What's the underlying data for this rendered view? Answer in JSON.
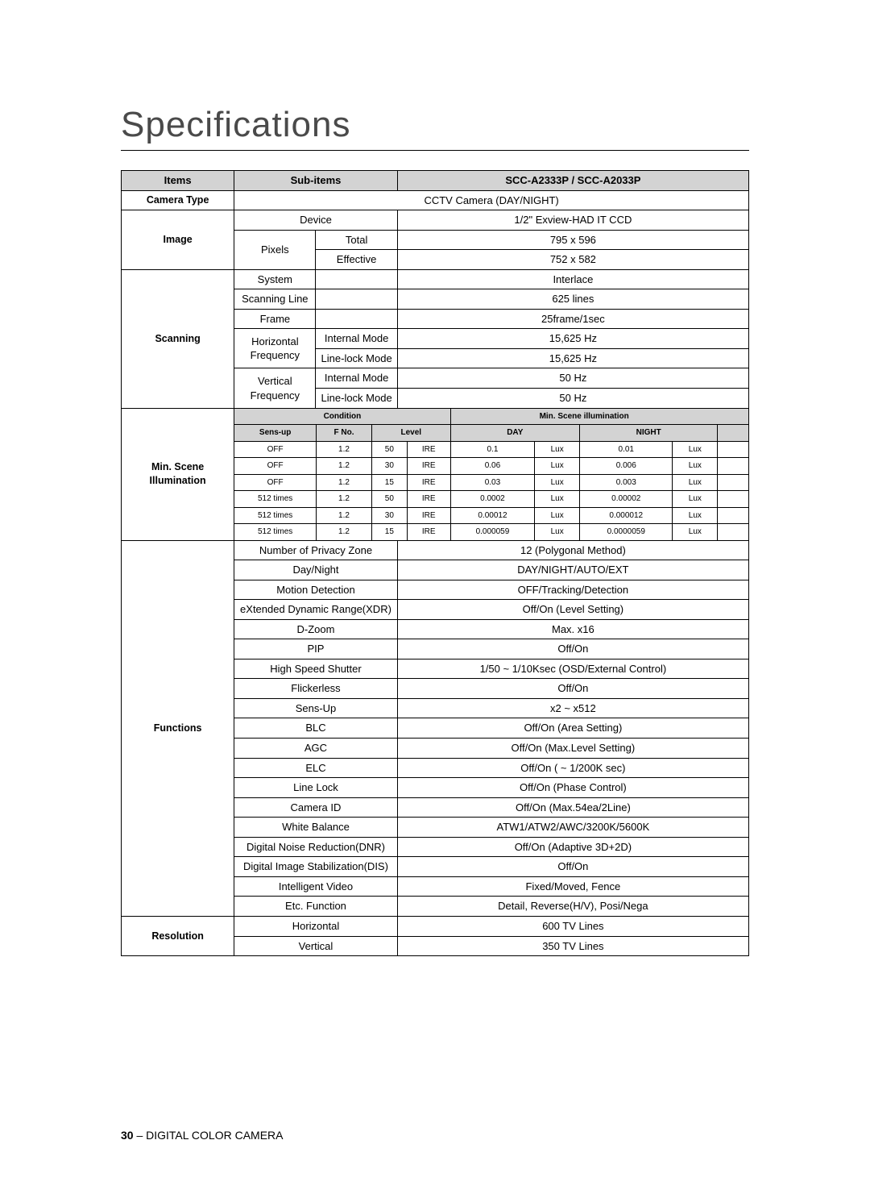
{
  "page_title": "Specifications",
  "footer_page_number": "30",
  "footer_text": " – DIGITAL COLOR CAMERA",
  "header": {
    "items": "Items",
    "sub_items": "Sub-items",
    "model": "SCC-A2333P / SCC-A2033P"
  },
  "camera_type": {
    "label": "Camera Type",
    "value": "CCTV Camera (DAY/NIGHT)"
  },
  "image": {
    "label": "Image",
    "device_label": "Device",
    "device_value": "1/2\" Exview-HAD IT CCD",
    "pixels_label": "Pixels",
    "total_label": "Total",
    "total_value": "795 x 596",
    "effective_label": "Effective",
    "effective_value": "752 x 582"
  },
  "scanning": {
    "label": "Scanning",
    "system_label": "System",
    "system_value": "Interlace",
    "line_label": "Scanning Line",
    "line_value": "625 lines",
    "frame_label": "Frame",
    "frame_value": "25frame/1sec",
    "hfreq_label": "Horizontal Frequency",
    "hfreq_int_label": "Internal Mode",
    "hfreq_int_value": "15,625 Hz",
    "hfreq_ll_label": "Line-lock Mode",
    "hfreq_ll_value": "15,625 Hz",
    "vfreq_label": "Vertical Frequency",
    "vfreq_int_label": "Internal Mode",
    "vfreq_int_value": "50 Hz",
    "vfreq_ll_label": "Line-lock Mode",
    "vfreq_ll_value": "50 Hz"
  },
  "min_scene": {
    "label": "Min. Scene Illumination",
    "cond_header": "Condition",
    "msi_header": "Min. Scene illumination",
    "sensup": "Sens-up",
    "fno": "F No.",
    "level": "Level",
    "day": "DAY",
    "night": "NIGHT",
    "rows": [
      {
        "s": "OFF",
        "f": "1.2",
        "lv": "50",
        "ire": "IRE",
        "d": "0.1",
        "du": "Lux",
        "n": "0.01",
        "nu": "Lux"
      },
      {
        "s": "OFF",
        "f": "1.2",
        "lv": "30",
        "ire": "IRE",
        "d": "0.06",
        "du": "Lux",
        "n": "0.006",
        "nu": "Lux"
      },
      {
        "s": "OFF",
        "f": "1.2",
        "lv": "15",
        "ire": "IRE",
        "d": "0.03",
        "du": "Lux",
        "n": "0.003",
        "nu": "Lux"
      },
      {
        "s": "512 times",
        "f": "1.2",
        "lv": "50",
        "ire": "IRE",
        "d": "0.0002",
        "du": "Lux",
        "n": "0.00002",
        "nu": "Lux"
      },
      {
        "s": "512 times",
        "f": "1.2",
        "lv": "30",
        "ire": "IRE",
        "d": "0.00012",
        "du": "Lux",
        "n": "0.000012",
        "nu": "Lux"
      },
      {
        "s": "512 times",
        "f": "1.2",
        "lv": "15",
        "ire": "IRE",
        "d": "0.000059",
        "du": "Lux",
        "n": "0.0000059",
        "nu": "Lux"
      }
    ]
  },
  "functions": {
    "label": "Functions",
    "rows": [
      {
        "k": "Number of Privacy Zone",
        "v": "12 (Polygonal Method)"
      },
      {
        "k": "Day/Night",
        "v": "DAY/NIGHT/AUTO/EXT"
      },
      {
        "k": "Motion Detection",
        "v": "OFF/Tracking/Detection"
      },
      {
        "k": "eXtended Dynamic Range(XDR)",
        "v": "Off/On (Level Setting)"
      },
      {
        "k": "D-Zoom",
        "v": "Max. x16"
      },
      {
        "k": "PIP",
        "v": "Off/On"
      },
      {
        "k": "High Speed Shutter",
        "v": "1/50 ~ 1/10Ksec (OSD/External Control)"
      },
      {
        "k": "Flickerless",
        "v": "Off/On"
      },
      {
        "k": "Sens-Up",
        "v": "x2 ~ x512"
      },
      {
        "k": "BLC",
        "v": "Off/On (Area Setting)"
      },
      {
        "k": "AGC",
        "v": "Off/On (Max.Level Setting)"
      },
      {
        "k": "ELC",
        "v": "Off/On ( ~ 1/200K sec)"
      },
      {
        "k": "Line Lock",
        "v": "Off/On (Phase Control)"
      },
      {
        "k": "Camera ID",
        "v": "Off/On (Max.54ea/2Line)"
      },
      {
        "k": "White Balance",
        "v": "ATW1/ATW2/AWC/3200K/5600K"
      },
      {
        "k": "Digital Noise Reduction(DNR)",
        "v": "Off/On (Adaptive 3D+2D)"
      },
      {
        "k": "Digital Image Stabilization(DIS)",
        "v": "Off/On"
      },
      {
        "k": "Intelligent Video",
        "v": "Fixed/Moved, Fence"
      },
      {
        "k": "Etc. Function",
        "v": "Detail, Reverse(H/V), Posi/Nega"
      }
    ]
  },
  "resolution": {
    "label": "Resolution",
    "h_label": "Horizontal",
    "h_value": "600 TV Lines",
    "v_label": "Vertical",
    "v_value": "350 TV Lines"
  },
  "column_widths": {
    "c1": "18%",
    "c2": "13%",
    "c3": "13%",
    "c4": "56%"
  }
}
